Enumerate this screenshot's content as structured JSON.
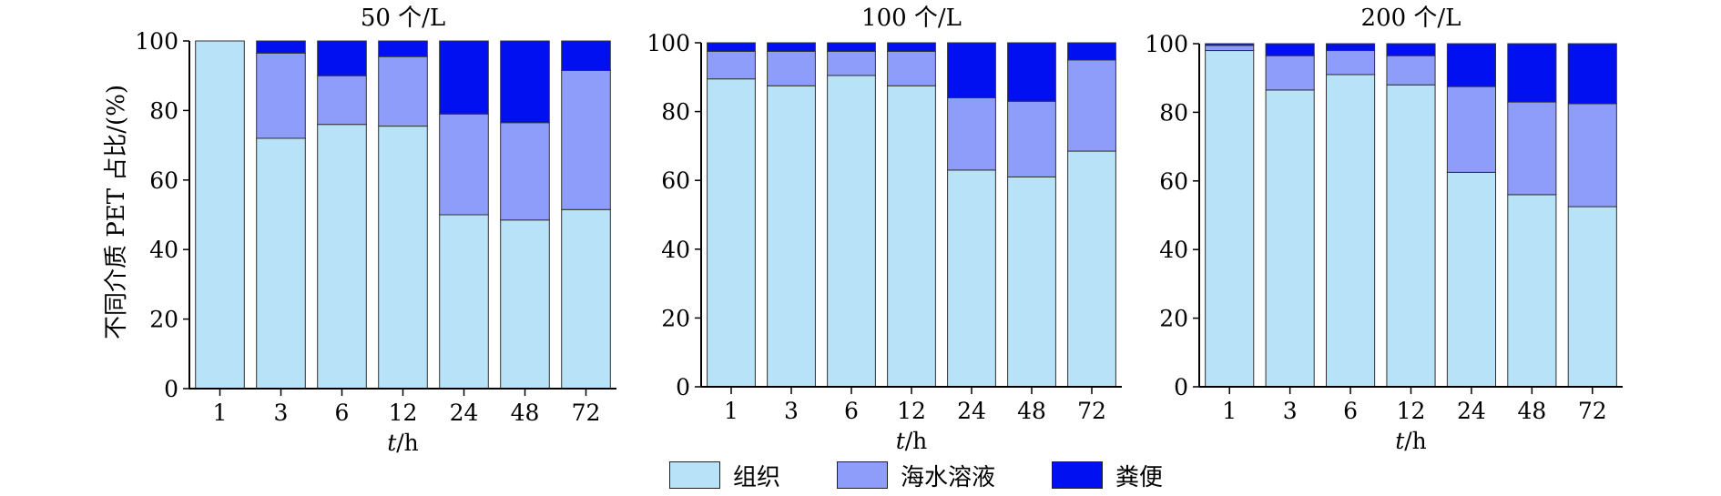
{
  "chart_data": [
    {
      "type": "bar",
      "stacked": true,
      "title": "50 个/L",
      "xlabel": "t/h",
      "ylabel": "不同介质 PET 占比/(%)",
      "categories": [
        "1",
        "3",
        "6",
        "12",
        "24",
        "48",
        "72"
      ],
      "ylim": [
        0,
        100
      ],
      "yticks": [
        "0",
        "20",
        "40",
        "60",
        "80",
        "100"
      ],
      "series": [
        {
          "name": "组织",
          "values": [
            100,
            72,
            76,
            75.5,
            50,
            48.5,
            51.5
          ]
        },
        {
          "name": "海水溶液",
          "values": [
            0,
            24.5,
            14,
            20,
            29,
            28,
            40
          ]
        },
        {
          "name": "粪便",
          "values": [
            0,
            3.5,
            10,
            4.5,
            21,
            23.5,
            8.5
          ]
        }
      ]
    },
    {
      "type": "bar",
      "stacked": true,
      "title": "100 个/L",
      "xlabel": "t/h",
      "ylabel": "",
      "categories": [
        "1",
        "3",
        "6",
        "12",
        "24",
        "48",
        "72"
      ],
      "ylim": [
        0,
        100
      ],
      "yticks": [
        "0",
        "20",
        "40",
        "60",
        "80",
        "100"
      ],
      "series": [
        {
          "name": "组织",
          "values": [
            89.5,
            87.5,
            90.5,
            87.5,
            63,
            61,
            68.5
          ]
        },
        {
          "name": "海水溶液",
          "values": [
            8,
            10,
            7,
            10,
            21,
            22,
            26.5
          ]
        },
        {
          "name": "粪便",
          "values": [
            2.5,
            2.5,
            2.5,
            2.5,
            16,
            17,
            5
          ]
        }
      ]
    },
    {
      "type": "bar",
      "stacked": true,
      "title": "200 个/L",
      "xlabel": "t/h",
      "ylabel": "",
      "categories": [
        "1",
        "3",
        "6",
        "12",
        "24",
        "48",
        "72"
      ],
      "ylim": [
        0,
        100
      ],
      "yticks": [
        "0",
        "20",
        "40",
        "60",
        "80",
        "100"
      ],
      "series": [
        {
          "name": "组织",
          "values": [
            98,
            86.5,
            91,
            88,
            62.5,
            56,
            52.5
          ]
        },
        {
          "name": "海水溶液",
          "values": [
            1.5,
            10,
            7,
            8.5,
            25,
            27,
            30
          ]
        },
        {
          "name": "粪便",
          "values": [
            0.5,
            3.5,
            2,
            3.5,
            12.5,
            17,
            17.5
          ]
        }
      ]
    }
  ],
  "legend": {
    "placement": "bottom-center",
    "items": [
      {
        "label": "组织",
        "color": "#b8e2f8"
      },
      {
        "label": "海水溶液",
        "color": "#8f9dfa"
      },
      {
        "label": "粪便",
        "color": "#0010f0"
      }
    ]
  },
  "colors": {
    "tissue": "#b8e2f8",
    "seawater": "#8f9dfa",
    "feces": "#0010f0",
    "axis": "#000000",
    "bar_edge": "#333333"
  }
}
